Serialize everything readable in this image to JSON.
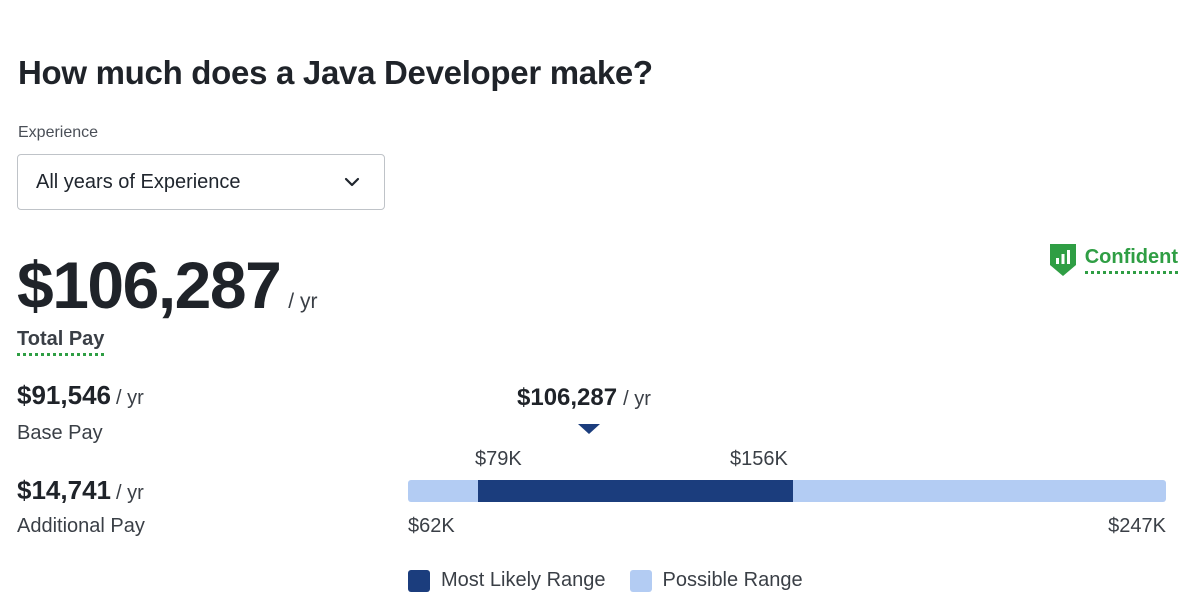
{
  "header": {
    "title": "How much does a Java Developer make?"
  },
  "experience": {
    "label": "Experience",
    "selected": "All years of Experience"
  },
  "confidence": {
    "label": "Confident",
    "color": "#2f9e44",
    "icon": "shield-bar-chart-icon"
  },
  "total_pay": {
    "amount": "$106,287",
    "period": "/ yr",
    "label": "Total Pay"
  },
  "base_pay": {
    "amount": "$91,546",
    "period": "/ yr",
    "label": "Base Pay"
  },
  "additional_pay": {
    "amount": "$14,741",
    "period": "/ yr",
    "label": "Additional Pay"
  },
  "range": {
    "median_label": "$106,287",
    "median_period": "/ yr",
    "median_value": 106287,
    "min_label": "$62K",
    "max_label": "$247K",
    "likely_low_label": "$79K",
    "likely_high_label": "$156K",
    "min_value": 62000,
    "max_value": 247000,
    "likely_low_value": 79000,
    "likely_high_value": 156000,
    "likely_color": "#1b3d7d",
    "possible_color": "#b3ccf3"
  },
  "legend": {
    "most_likely": "Most Likely Range",
    "possible": "Possible Range"
  }
}
